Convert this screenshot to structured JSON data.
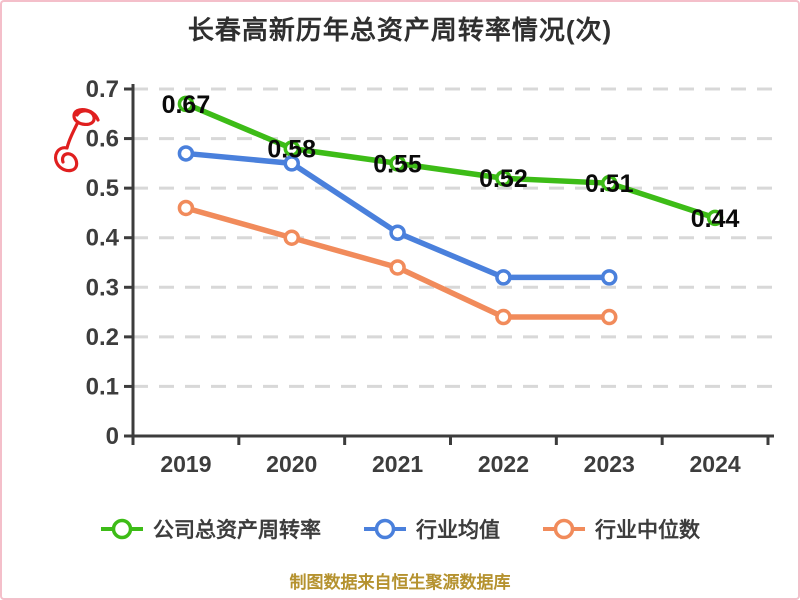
{
  "page": {
    "caption": "制图数据来自恒生聚源数据库",
    "border_color": "#f4bfca"
  },
  "chart_data": {
    "type": "line",
    "title": "长春高新历年总资产周转率情况(次)",
    "categories": [
      "2019",
      "2020",
      "2021",
      "2022",
      "2023",
      "2024"
    ],
    "series": [
      {
        "name": "公司总资产周转率",
        "color": "#3dbc17",
        "values": [
          0.67,
          0.58,
          0.55,
          0.52,
          0.51,
          0.44
        ],
        "point_labels": [
          "0.67",
          "0.58",
          "0.55",
          "0.52",
          "0.51",
          "0.44"
        ]
      },
      {
        "name": "行业均值",
        "color": "#4a80dc",
        "values": [
          0.57,
          0.55,
          0.41,
          0.32,
          0.32,
          null
        ],
        "point_labels": []
      },
      {
        "name": "行业中位数",
        "color": "#f18b5b",
        "values": [
          0.46,
          0.4,
          0.34,
          0.24,
          0.24,
          null
        ],
        "point_labels": []
      }
    ],
    "ylim": [
      0,
      0.7
    ],
    "ytick_labels": [
      "0",
      "0.1",
      "0.2",
      "0.3",
      "0.4",
      "0.5",
      "0.6",
      "0.7"
    ],
    "xlabel": "",
    "ylabel": "",
    "grid": "horizontal-dashed",
    "grid_color": "#d8d8d8",
    "axis_color": "#3c3c3c",
    "marker_style": "white-filled-circle",
    "legend_position": "bottom"
  }
}
